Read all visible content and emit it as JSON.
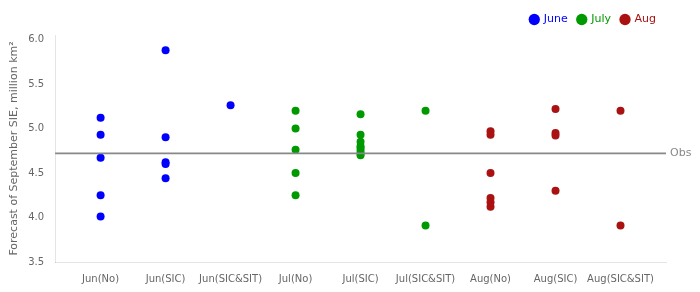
{
  "chart_data": {
    "type": "scatter",
    "categories": [
      "Jun(No)",
      "Jun(SIC)",
      "Jun(SIC&SIT)",
      "Jul(No)",
      "Jul(SIC)",
      "Jul(SIC&SIT)",
      "Aug(No)",
      "Aug(SIC)",
      "Aug(SIC&SIT)"
    ],
    "ylabel": "Forecast of September SIE, million km²",
    "ylim": [
      3.5,
      6.05
    ],
    "yticks": [
      3.5,
      {
        "value": 4.0,
        "label": "4.0"
      },
      4.5,
      {
        "value": 5.0,
        "label": "5.0"
      },
      5.5,
      {
        "value": 6.0,
        "label": "6.0"
      }
    ],
    "grid": false,
    "legend": "upper right",
    "reference_line": {
      "value": 4.72,
      "label": "Obs",
      "color": "#888888"
    },
    "series": [
      {
        "name": "June",
        "color": "#0000FF",
        "x": [
          "Jun(No)",
          "Jun(No)",
          "Jun(No)",
          "Jun(No)",
          "Jun(No)",
          "Jun(SIC)",
          "Jun(SIC)",
          "Jun(SIC)",
          "Jun(SIC)",
          "Jun(SIC)",
          "Jun(SIC&SIT)"
        ],
        "values": [
          5.12,
          4.93,
          4.67,
          4.25,
          4.01,
          5.88,
          4.9,
          4.62,
          4.6,
          4.44,
          5.26
        ]
      },
      {
        "name": "July",
        "color": "#009900",
        "x": [
          "Jul(No)",
          "Jul(No)",
          "Jul(No)",
          "Jul(No)",
          "Jul(No)",
          "Jul(SIC)",
          "Jul(SIC)",
          "Jul(SIC)",
          "Jul(SIC)",
          "Jul(SIC)",
          "Jul(SIC)",
          "Jul(SIC)",
          "Jul(SIC)",
          "Jul(SIC&SIT)",
          "Jul(SIC&SIT)"
        ],
        "values": [
          5.2,
          5.0,
          4.76,
          4.5,
          4.25,
          5.16,
          4.93,
          4.85,
          4.8,
          4.78,
          4.75,
          4.72,
          4.7,
          5.2,
          3.91
        ]
      },
      {
        "name": "Aug",
        "color": "#AA1111",
        "x": [
          "Aug(No)",
          "Aug(No)",
          "Aug(No)",
          "Aug(No)",
          "Aug(No)",
          "Aug(No)",
          "Aug(SIC)",
          "Aug(SIC)",
          "Aug(SIC)",
          "Aug(SIC)",
          "Aug(SIC&SIT)",
          "Aug(SIC&SIT)"
        ],
        "values": [
          4.97,
          4.93,
          4.5,
          4.22,
          4.17,
          4.12,
          5.22,
          4.95,
          4.92,
          4.3,
          5.2,
          3.91
        ]
      }
    ]
  }
}
